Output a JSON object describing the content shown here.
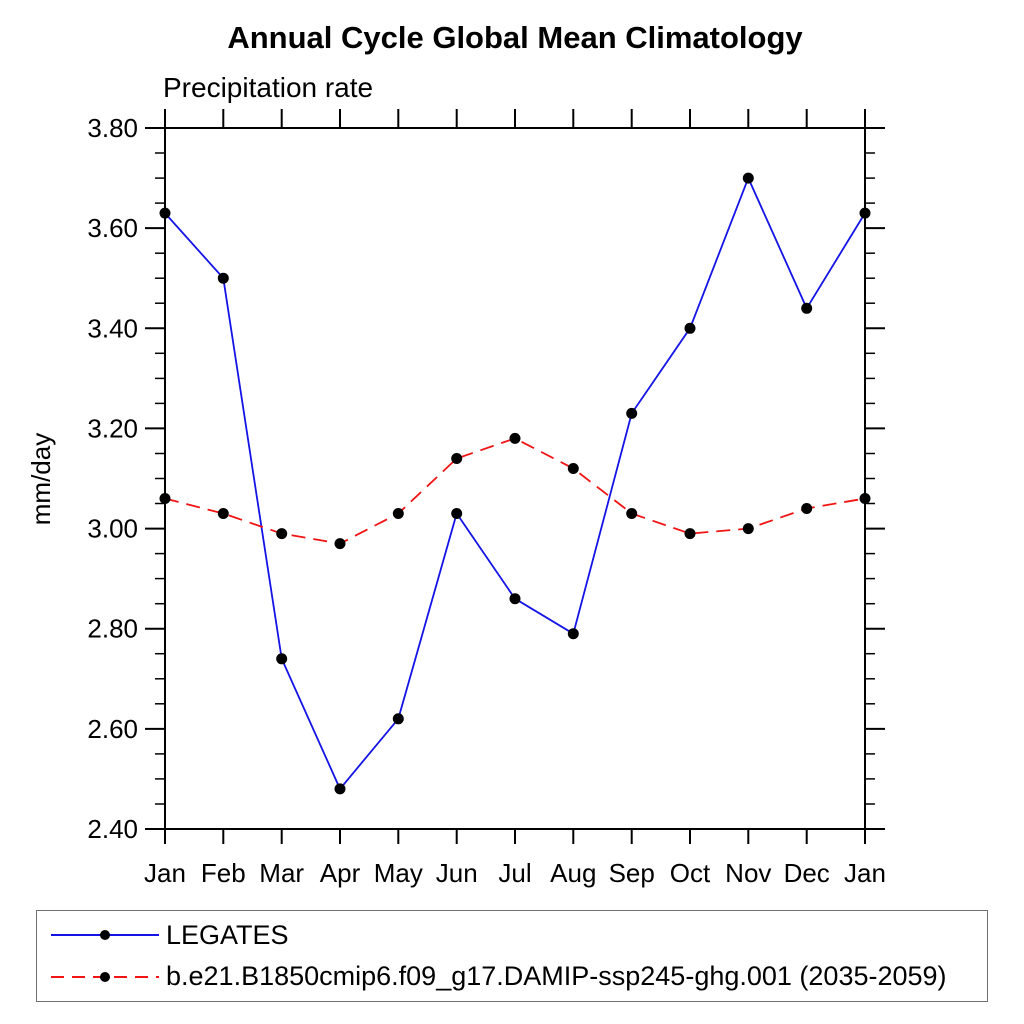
{
  "title": "Annual Cycle Global Mean Climatology",
  "subtitle": "Precipitation rate",
  "chart_data": {
    "type": "line",
    "title": "Annual Cycle Global Mean Climatology",
    "subtitle": "Precipitation rate",
    "ylabel": "mm/day",
    "xlabel": "",
    "ylim": [
      2.4,
      3.8
    ],
    "y_major_tick_labels": [
      "3.80",
      "3.60",
      "3.40",
      "3.20",
      "3.00",
      "2.80",
      "2.60",
      "2.40"
    ],
    "y_major_step": 0.2,
    "y_minor_step": 0.05,
    "grid": "off",
    "legend_position": "bottom",
    "categories": [
      "Jan",
      "Feb",
      "Mar",
      "Apr",
      "May",
      "Jun",
      "Jul",
      "Aug",
      "Sep",
      "Oct",
      "Nov",
      "Dec",
      "Jan"
    ],
    "series": [
      {
        "name": "LEGATES",
        "color": "#1414e6",
        "line_style": "solid",
        "marker": "black-dot",
        "values": [
          3.63,
          3.5,
          2.74,
          2.48,
          2.62,
          3.03,
          2.86,
          2.79,
          3.23,
          3.4,
          3.7,
          3.44,
          3.63
        ]
      },
      {
        "name": "b.e21.B1850cmip6.f09_g17.DAMIP-ssp245-ghg.001 (2035-2059)",
        "color": "#f01414",
        "line_style": "dashed",
        "marker": "black-dot",
        "values": [
          3.06,
          3.03,
          2.99,
          2.97,
          3.03,
          3.14,
          3.18,
          3.12,
          3.03,
          2.99,
          3.0,
          3.04,
          3.06
        ]
      }
    ]
  },
  "colors": {
    "axis": "#000000",
    "marker": "#000000",
    "legend_border": "#707070"
  }
}
